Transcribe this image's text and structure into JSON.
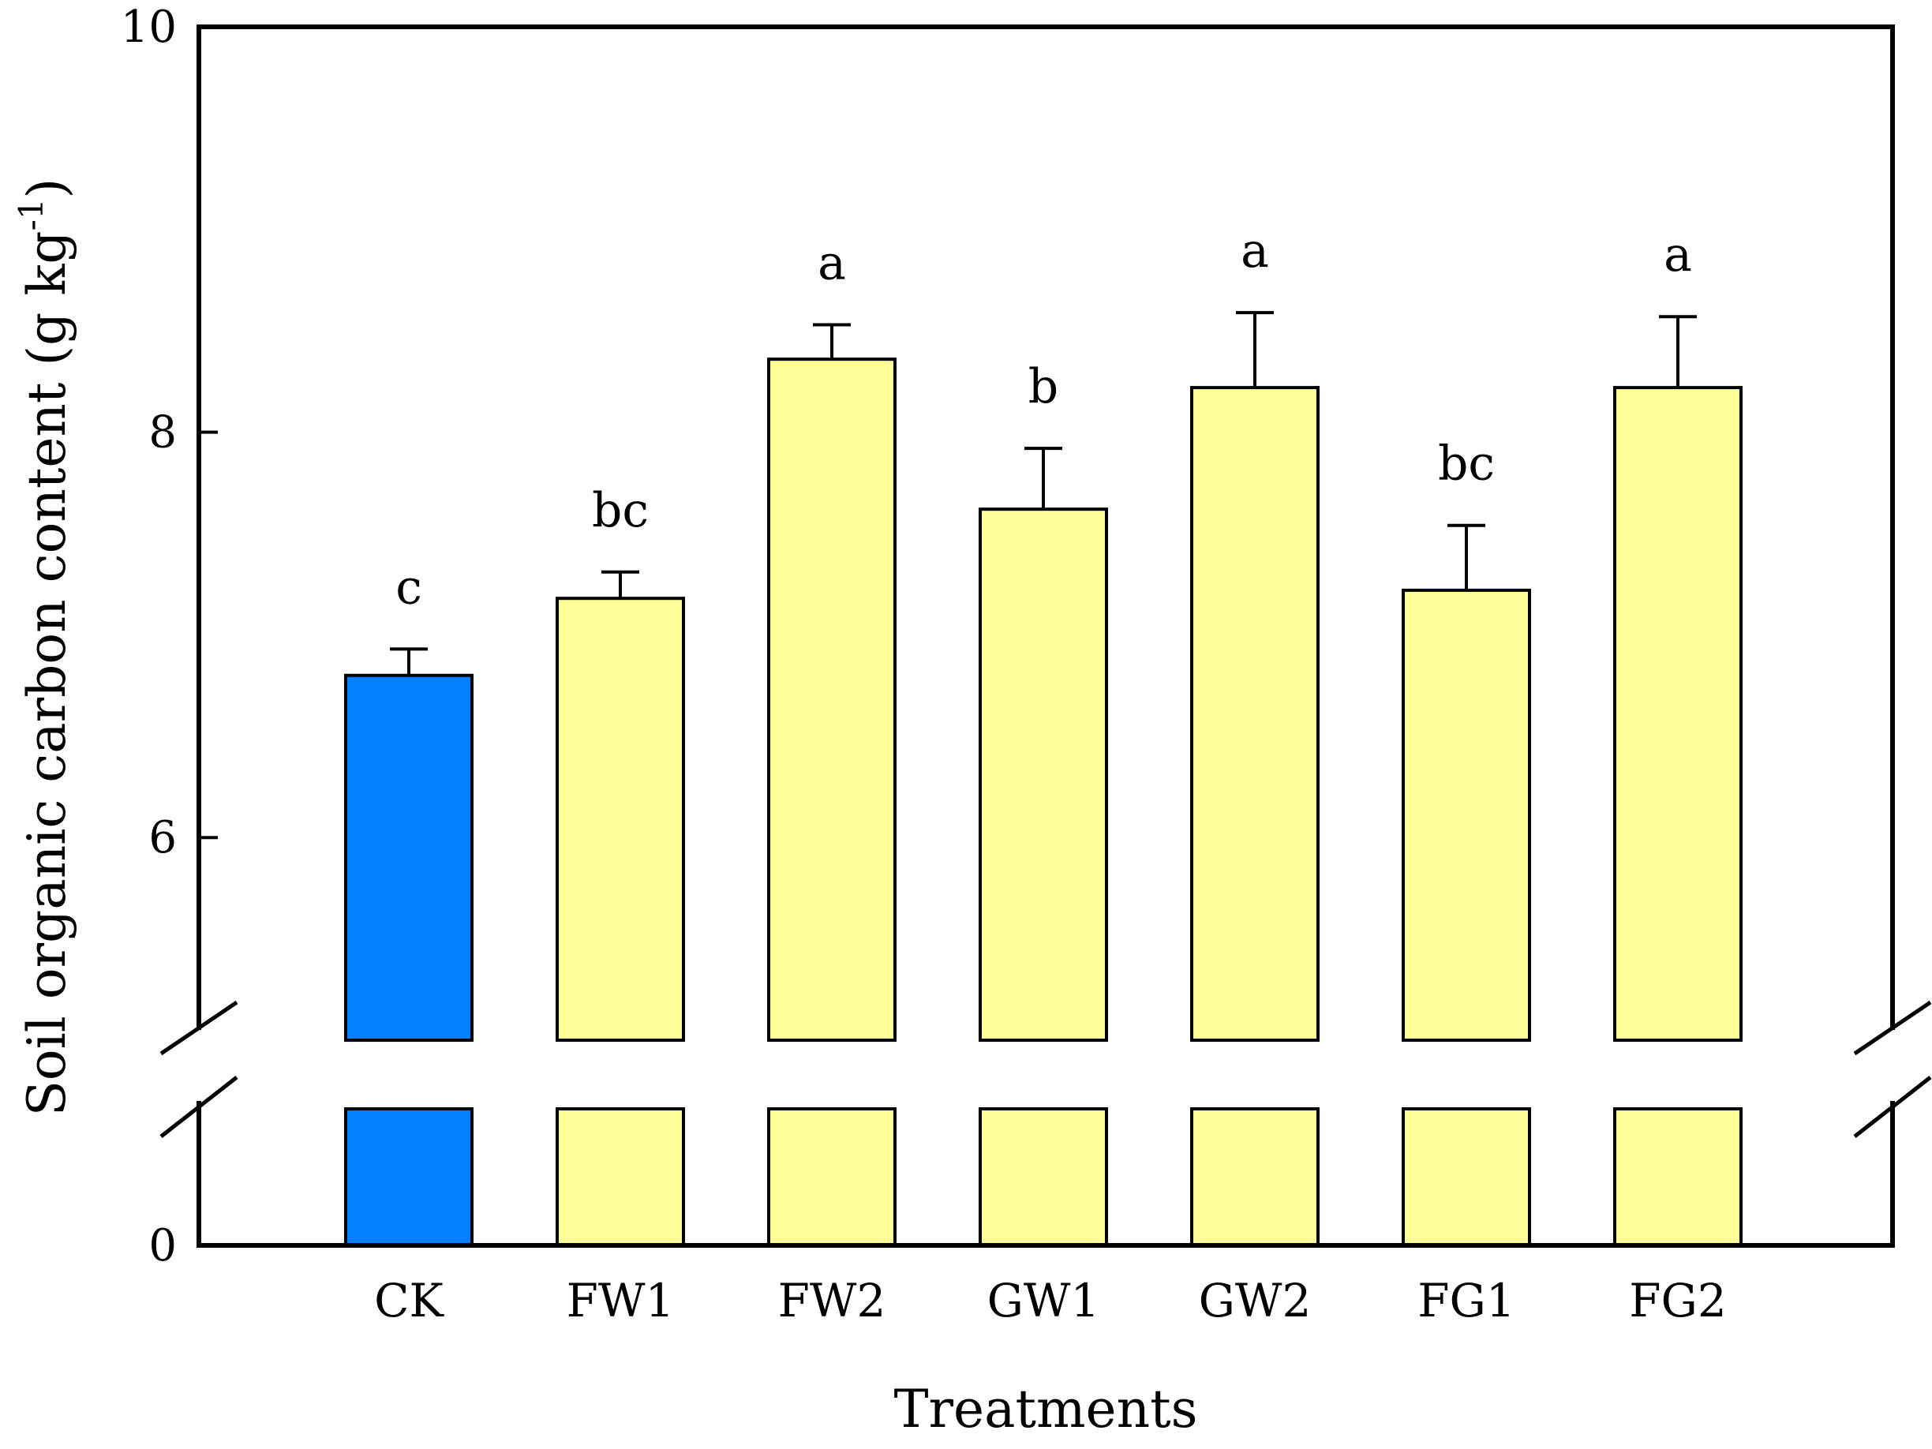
{
  "chart_data": {
    "type": "bar",
    "title": "",
    "xlabel": "Treatments",
    "ylabel": "Soil organic carbon content (g kg",
    "ylabel_superscript": "-1",
    "ylabel_suffix": ")",
    "categories": [
      "CK",
      "FW1",
      "FW2",
      "GW1",
      "GW2",
      "FG1",
      "FG2"
    ],
    "values": [
      6.8,
      7.18,
      8.36,
      7.62,
      8.22,
      7.22,
      8.22
    ],
    "errors": [
      0.13,
      0.13,
      0.17,
      0.3,
      0.37,
      0.32,
      0.35
    ],
    "significance": [
      "c",
      "bc",
      "a",
      "b",
      "a",
      "bc",
      "a"
    ],
    "colors": [
      "#0080ff",
      "#ffff99",
      "#ffff99",
      "#ffff99",
      "#ffff99",
      "#ffff99",
      "#ffff99"
    ],
    "ylim": [
      0,
      10
    ],
    "axis_break": [
      0.67,
      5.0
    ],
    "yticks": [
      0,
      6,
      8,
      10
    ],
    "ytick_labels": [
      "0",
      "6",
      "8",
      "10"
    ],
    "grid": false
  }
}
